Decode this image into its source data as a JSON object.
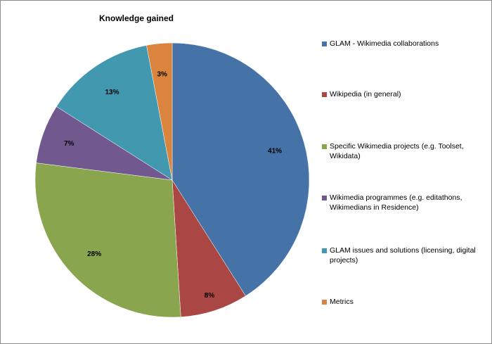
{
  "chart_data": {
    "type": "pie",
    "title": "Knowledge gained",
    "start_angle_deg": 0,
    "direction": "clockwise",
    "slices": [
      {
        "label": "GLAM - Wikimedia collaborations",
        "value": 41,
        "display": "41%",
        "color": "#4572a7"
      },
      {
        "label": "Wikipedia (in general)",
        "value": 8,
        "display": "8%",
        "color": "#aa4643"
      },
      {
        "label": "Specific Wikimedia projects (e.g. Toolset, Wikidata)",
        "value": 28,
        "display": "28%",
        "color": "#89a54e"
      },
      {
        "label": "Wikimedia programmes  (e.g. editathons, Wikimedians in Residence)",
        "value": 7,
        "display": "7%",
        "color": "#71588f"
      },
      {
        "label": "GLAM issues and solutions (licensing, digital projects)",
        "value": 13,
        "display": "13%",
        "color": "#4198af"
      },
      {
        "label": "Metrics",
        "value": 3,
        "display": "3%",
        "color": "#db843d"
      }
    ],
    "legend_position": "right"
  }
}
